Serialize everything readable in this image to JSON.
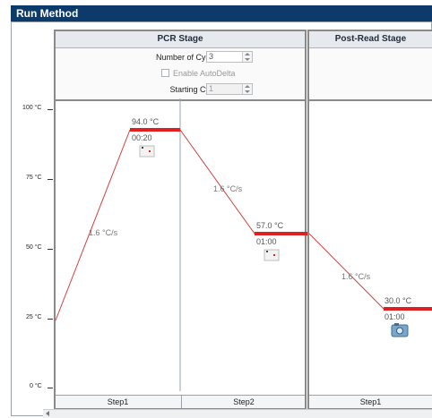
{
  "window": {
    "title": "Run Method"
  },
  "y_axis": {
    "ticks": [
      "100 °C",
      "75 °C",
      "50 °C",
      "25 °C",
      "0 °C"
    ]
  },
  "stages": [
    {
      "title": "PCR Stage",
      "number_of_cycles_label": "Number of Cycles:",
      "number_of_cycles_value": "3",
      "enable_autodelta_label": "Enable AutoDelta",
      "enable_autodelta_checked": false,
      "starting_cycle_label": "Starting Cycle:",
      "starting_cycle_value": "1",
      "steps": [
        {
          "name": "Step1",
          "temperature": "94.0 °C",
          "time": "00:20",
          "ramp": "1.6 °C/s"
        },
        {
          "name": "Step2",
          "temperature": "57.0 °C",
          "time": "01:00",
          "ramp": "1.6 °C/s"
        }
      ]
    },
    {
      "title": "Post-Read Stage",
      "steps": [
        {
          "name": "Step1",
          "temperature": "30.0 °C",
          "time": "01:00",
          "ramp": "1.6 °C/s"
        }
      ]
    }
  ],
  "colors": {
    "hold_line": "#e02020",
    "ramp_line": "#d04040",
    "title_bar": "#0b3a6b"
  }
}
